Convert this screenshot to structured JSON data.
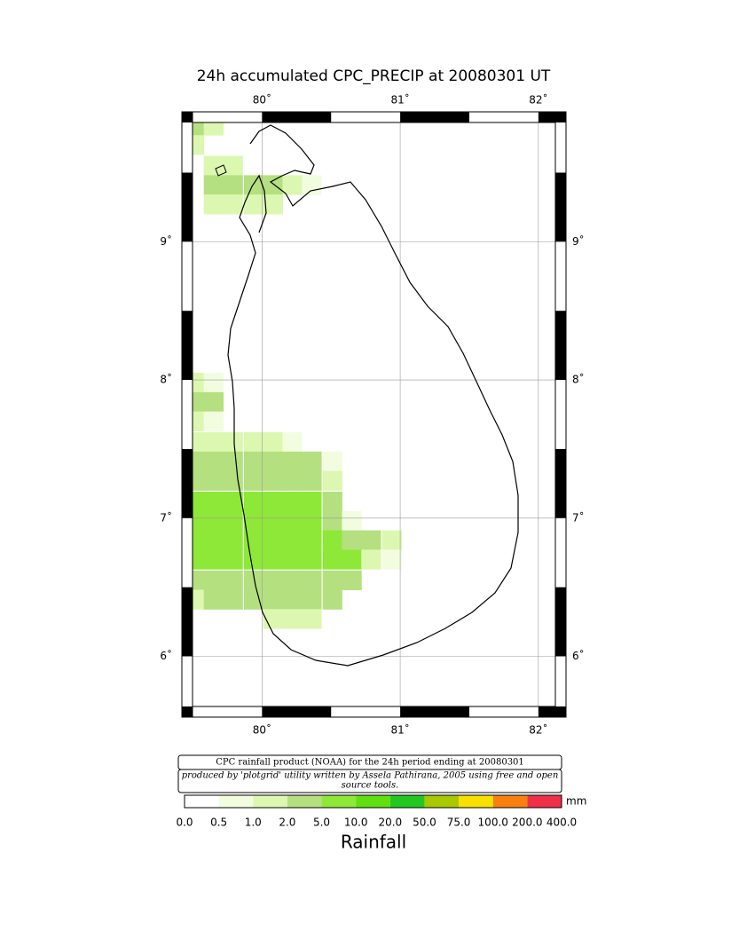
{
  "chart_data": {
    "type": "rain_map",
    "title": "24h accumulated CPC_PRECIP  at 20080301 UT",
    "lon_ticks": [
      {
        "value": 80,
        "label": "80˚"
      },
      {
        "value": 81,
        "label": "81˚"
      },
      {
        "value": 82,
        "label": "82˚"
      }
    ],
    "lat_ticks": [
      {
        "value": 6,
        "label": "6˚"
      },
      {
        "value": 7,
        "label": "7˚"
      },
      {
        "value": 8,
        "label": "8˚"
      },
      {
        "value": 9,
        "label": "9˚"
      }
    ],
    "xlim": [
      79.42,
      82.2
    ],
    "ylim": [
      5.56,
      9.94
    ],
    "grid": true,
    "cell_size": 0.143,
    "rain_rows": [
      {
        "lat": 9.84,
        "cells": [
          [
            79.51,
            2
          ],
          [
            79.65,
            1
          ]
        ]
      },
      {
        "lat": 9.7,
        "cells": [
          [
            79.51,
            1
          ]
        ]
      },
      {
        "lat": 9.55,
        "cells": [
          [
            79.65,
            1
          ],
          [
            79.79,
            1
          ]
        ]
      },
      {
        "lat": 9.41,
        "cells": [
          [
            79.65,
            2
          ],
          [
            79.79,
            2
          ],
          [
            79.94,
            2
          ],
          [
            80.08,
            2
          ],
          [
            80.22,
            1
          ],
          [
            80.36,
            0.5
          ]
        ]
      },
      {
        "lat": 9.27,
        "cells": [
          [
            79.65,
            1
          ],
          [
            79.79,
            1
          ],
          [
            79.94,
            1
          ],
          [
            80.08,
            1
          ]
        ]
      },
      {
        "lat": 7.98,
        "cells": [
          [
            79.51,
            1
          ],
          [
            79.65,
            0.5
          ]
        ]
      },
      {
        "lat": 7.84,
        "cells": [
          [
            79.51,
            2
          ],
          [
            79.65,
            2
          ]
        ]
      },
      {
        "lat": 7.7,
        "cells": [
          [
            79.51,
            1
          ],
          [
            79.65,
            0.5
          ]
        ]
      },
      {
        "lat": 7.55,
        "cells": [
          [
            79.51,
            1
          ],
          [
            79.65,
            1
          ],
          [
            79.79,
            1
          ],
          [
            79.94,
            1
          ],
          [
            80.08,
            1
          ],
          [
            80.22,
            0.5
          ]
        ]
      },
      {
        "lat": 7.41,
        "cells": [
          [
            79.51,
            3
          ],
          [
            79.65,
            3
          ],
          [
            79.79,
            3
          ],
          [
            79.94,
            3
          ],
          [
            80.08,
            3
          ],
          [
            80.22,
            3
          ],
          [
            80.36,
            2
          ],
          [
            80.51,
            0.5
          ]
        ]
      },
      {
        "lat": 7.27,
        "cells": [
          [
            79.51,
            4
          ],
          [
            79.65,
            4
          ],
          [
            79.79,
            4
          ],
          [
            79.94,
            4
          ],
          [
            80.08,
            4
          ],
          [
            80.22,
            4
          ],
          [
            80.36,
            4
          ],
          [
            80.51,
            1
          ]
        ]
      },
      {
        "lat": 7.12,
        "cells": [
          [
            79.51,
            5
          ],
          [
            79.65,
            5
          ],
          [
            79.79,
            5
          ],
          [
            79.94,
            5
          ],
          [
            80.08,
            5
          ],
          [
            80.22,
            5
          ],
          [
            80.36,
            5
          ],
          [
            80.51,
            2
          ]
        ]
      },
      {
        "lat": 6.98,
        "cells": [
          [
            79.51,
            6
          ],
          [
            79.65,
            6
          ],
          [
            79.79,
            6
          ],
          [
            79.94,
            6
          ],
          [
            80.08,
            6
          ],
          [
            80.22,
            6
          ],
          [
            80.36,
            6
          ],
          [
            80.51,
            3
          ],
          [
            80.65,
            0.5
          ]
        ]
      },
      {
        "lat": 6.84,
        "cells": [
          [
            79.51,
            6
          ],
          [
            79.65,
            6
          ],
          [
            79.79,
            6
          ],
          [
            79.94,
            6
          ],
          [
            80.08,
            6
          ],
          [
            80.22,
            6
          ],
          [
            80.36,
            6
          ],
          [
            80.51,
            6
          ],
          [
            80.65,
            3
          ],
          [
            80.79,
            2
          ],
          [
            80.94,
            1
          ]
        ]
      },
      {
        "lat": 6.7,
        "cells": [
          [
            79.51,
            5
          ],
          [
            79.65,
            5
          ],
          [
            79.79,
            5
          ],
          [
            79.94,
            5
          ],
          [
            80.08,
            5
          ],
          [
            80.22,
            5
          ],
          [
            80.36,
            5
          ],
          [
            80.51,
            5
          ],
          [
            80.65,
            5
          ],
          [
            80.79,
            1
          ],
          [
            80.94,
            0.5
          ]
        ]
      },
      {
        "lat": 6.55,
        "cells": [
          [
            79.51,
            4
          ],
          [
            79.65,
            4
          ],
          [
            79.79,
            4
          ],
          [
            79.94,
            4
          ],
          [
            80.08,
            4
          ],
          [
            80.22,
            4
          ],
          [
            80.36,
            4
          ],
          [
            80.51,
            4
          ],
          [
            80.65,
            2
          ]
        ]
      },
      {
        "lat": 6.41,
        "cells": [
          [
            79.51,
            1
          ],
          [
            79.65,
            3
          ],
          [
            79.79,
            3
          ],
          [
            79.94,
            3
          ],
          [
            80.08,
            3
          ],
          [
            80.22,
            3
          ],
          [
            80.36,
            3
          ],
          [
            80.51,
            3
          ]
        ]
      },
      {
        "lat": 6.27,
        "cells": [
          [
            80.08,
            1
          ],
          [
            80.22,
            1
          ],
          [
            80.36,
            1
          ]
        ]
      }
    ],
    "notes": [
      "CPC rainfall product (NOAA) for the 24h period ending at 20080301",
      "produced by 'plotgrid' utility written by Assela Pathirana, 2005 using free and open",
      "source tools."
    ],
    "legend": {
      "title": "Rainfall",
      "unit": "mm",
      "bins": [
        {
          "value": 0,
          "label": "0.0"
        },
        {
          "value": 0.5,
          "label": "0.5"
        },
        {
          "value": 1,
          "label": "1.0"
        },
        {
          "value": 2,
          "label": "2.0"
        },
        {
          "value": 5,
          "label": "5.0"
        },
        {
          "value": 10,
          "label": "10.0"
        },
        {
          "value": 20,
          "label": "20.0"
        },
        {
          "value": 50,
          "label": "50.0"
        },
        {
          "value": 75,
          "label": "75.0"
        },
        {
          "value": 100,
          "label": "100.0"
        },
        {
          "value": 200,
          "label": "200.0"
        },
        {
          "value": 400,
          "label": "400.0"
        }
      ],
      "colors": [
        "#ffffff",
        "#f2fde0",
        "#dcf8b0",
        "#b4e080",
        "#8ee838",
        "#60e010",
        "#22c820",
        "#a8c800",
        "#f8e000",
        "#f88010",
        "#f03048"
      ]
    }
  }
}
